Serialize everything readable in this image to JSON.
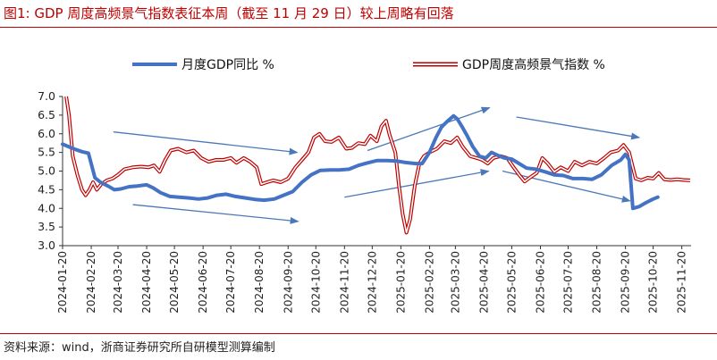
{
  "title": "图1:   GDP 周度高频景气指数表征本周（截至 11 月 29 日）较上周略有回落",
  "source": "资料来源：wind，浙商证券研究所自研模型测算编制",
  "colors": {
    "series1": "#4472c4",
    "series2": "#c00000",
    "arrow": "#4a78b8",
    "accent": "#c00000"
  },
  "chart_data": {
    "type": "line",
    "title": "",
    "xlabel": "",
    "ylabel": "",
    "ylim": [
      3.0,
      7.0
    ],
    "yticks": [
      "3.0",
      "3.5",
      "4.0",
      "4.5",
      "5.0",
      "5.5",
      "6.0",
      "6.5",
      "7.0"
    ],
    "xticks": [
      "2024-01-20",
      "2024-02-20",
      "2024-03-20",
      "2024-04-20",
      "2024-05-20",
      "2024-06-20",
      "2024-07-20",
      "2024-08-20",
      "2024-09-20",
      "2024-10-20",
      "2024-11-20",
      "2024-12-20",
      "2025-01-20",
      "2025-02-20",
      "2025-03-20",
      "2025-04-20",
      "2025-05-20",
      "2025-06-20",
      "2025-07-20",
      "2025-08-20",
      "2025-09-20",
      "2025-10-20",
      "2025-11-20"
    ],
    "legend_position": "top",
    "grid": false,
    "series": [
      {
        "name": "月度GDP同比 %",
        "style": "solid-thick",
        "points": [
          [
            "2024-01-20",
            5.72
          ],
          [
            "2024-01-27",
            5.65
          ],
          [
            "2024-02-03",
            5.58
          ],
          [
            "2024-02-10",
            5.52
          ],
          [
            "2024-02-17",
            5.48
          ],
          [
            "2024-02-20",
            5.2
          ],
          [
            "2024-02-24",
            4.82
          ],
          [
            "2024-03-01",
            4.7
          ],
          [
            "2024-03-09",
            4.6
          ],
          [
            "2024-03-16",
            4.5
          ],
          [
            "2024-03-23",
            4.52
          ],
          [
            "2024-04-01",
            4.58
          ],
          [
            "2024-04-10",
            4.6
          ],
          [
            "2024-04-20",
            4.63
          ],
          [
            "2024-04-27",
            4.55
          ],
          [
            "2024-05-05",
            4.42
          ],
          [
            "2024-05-15",
            4.32
          ],
          [
            "2024-05-25",
            4.3
          ],
          [
            "2024-06-05",
            4.28
          ],
          [
            "2024-06-15",
            4.25
          ],
          [
            "2024-06-25",
            4.28
          ],
          [
            "2024-07-05",
            4.35
          ],
          [
            "2024-07-15",
            4.38
          ],
          [
            "2024-07-25",
            4.32
          ],
          [
            "2024-08-05",
            4.28
          ],
          [
            "2024-08-15",
            4.24
          ],
          [
            "2024-08-25",
            4.22
          ],
          [
            "2024-09-05",
            4.25
          ],
          [
            "2024-09-15",
            4.35
          ],
          [
            "2024-09-25",
            4.45
          ],
          [
            "2024-10-05",
            4.7
          ],
          [
            "2024-10-15",
            4.9
          ],
          [
            "2024-10-25",
            5.02
          ],
          [
            "2024-11-05",
            5.03
          ],
          [
            "2024-11-15",
            5.03
          ],
          [
            "2024-11-25",
            5.05
          ],
          [
            "2024-12-05",
            5.15
          ],
          [
            "2024-12-15",
            5.22
          ],
          [
            "2024-12-25",
            5.28
          ],
          [
            "2025-01-05",
            5.28
          ],
          [
            "2025-01-15",
            5.27
          ],
          [
            "2025-01-25",
            5.23
          ],
          [
            "2025-02-05",
            5.2
          ],
          [
            "2025-02-12",
            5.2
          ],
          [
            "2025-02-20",
            5.5
          ],
          [
            "2025-02-27",
            5.9
          ],
          [
            "2025-03-05",
            6.18
          ],
          [
            "2025-03-12",
            6.35
          ],
          [
            "2025-03-18",
            6.48
          ],
          [
            "2025-03-22",
            6.4
          ],
          [
            "2025-03-27",
            6.2
          ],
          [
            "2025-04-01",
            5.98
          ],
          [
            "2025-04-08",
            5.65
          ],
          [
            "2025-04-15",
            5.4
          ],
          [
            "2025-04-22",
            5.35
          ],
          [
            "2025-04-28",
            5.5
          ],
          [
            "2025-05-05",
            5.42
          ],
          [
            "2025-05-12",
            5.35
          ],
          [
            "2025-05-20",
            5.32
          ],
          [
            "2025-05-28",
            5.2
          ],
          [
            "2025-06-05",
            5.08
          ],
          [
            "2025-06-15",
            5.05
          ],
          [
            "2025-06-25",
            4.98
          ],
          [
            "2025-07-05",
            4.9
          ],
          [
            "2025-07-15",
            4.88
          ],
          [
            "2025-07-25",
            4.8
          ],
          [
            "2025-08-05",
            4.8
          ],
          [
            "2025-08-15",
            4.78
          ],
          [
            "2025-08-25",
            4.9
          ],
          [
            "2025-09-05",
            5.15
          ],
          [
            "2025-09-15",
            5.3
          ],
          [
            "2025-09-20",
            5.45
          ],
          [
            "2025-09-24",
            5.3
          ],
          [
            "2025-09-28",
            4.0
          ],
          [
            "2025-10-05",
            4.05
          ],
          [
            "2025-10-12",
            4.15
          ],
          [
            "2025-10-20",
            4.25
          ],
          [
            "2025-10-25",
            4.3
          ]
        ]
      },
      {
        "name": "GDP周度高频景气指数 %",
        "style": "double-red",
        "points": [
          [
            "2024-01-24",
            7.0
          ],
          [
            "2024-01-27",
            6.5
          ],
          [
            "2024-01-31",
            5.4
          ],
          [
            "2024-02-05",
            4.9
          ],
          [
            "2024-02-10",
            4.5
          ],
          [
            "2024-02-14",
            4.35
          ],
          [
            "2024-02-18",
            4.5
          ],
          [
            "2024-02-22",
            4.7
          ],
          [
            "2024-02-26",
            4.5
          ],
          [
            "2024-03-02",
            4.65
          ],
          [
            "2024-03-08",
            4.75
          ],
          [
            "2024-03-14",
            4.8
          ],
          [
            "2024-03-20",
            4.9
          ],
          [
            "2024-03-27",
            5.05
          ],
          [
            "2024-04-05",
            5.1
          ],
          [
            "2024-04-14",
            5.12
          ],
          [
            "2024-04-22",
            5.1
          ],
          [
            "2024-04-28",
            5.15
          ],
          [
            "2024-05-04",
            4.98
          ],
          [
            "2024-05-10",
            5.3
          ],
          [
            "2024-05-16",
            5.55
          ],
          [
            "2024-05-24",
            5.6
          ],
          [
            "2024-06-02",
            5.5
          ],
          [
            "2024-06-10",
            5.55
          ],
          [
            "2024-06-18",
            5.35
          ],
          [
            "2024-06-26",
            5.25
          ],
          [
            "2024-07-04",
            5.3
          ],
          [
            "2024-07-12",
            5.3
          ],
          [
            "2024-07-20",
            5.35
          ],
          [
            "2024-07-26",
            5.22
          ],
          [
            "2024-08-03",
            5.35
          ],
          [
            "2024-08-10",
            5.25
          ],
          [
            "2024-08-17",
            5.1
          ],
          [
            "2024-08-22",
            4.65
          ],
          [
            "2024-08-28",
            4.7
          ],
          [
            "2024-09-04",
            4.75
          ],
          [
            "2024-09-12",
            4.7
          ],
          [
            "2024-09-20",
            4.8
          ],
          [
            "2024-09-28",
            5.1
          ],
          [
            "2024-10-05",
            5.3
          ],
          [
            "2024-10-12",
            5.5
          ],
          [
            "2024-10-18",
            5.9
          ],
          [
            "2024-10-24",
            6.0
          ],
          [
            "2024-10-30",
            5.8
          ],
          [
            "2024-11-06",
            5.78
          ],
          [
            "2024-11-14",
            5.9
          ],
          [
            "2024-11-22",
            5.6
          ],
          [
            "2024-11-28",
            5.62
          ],
          [
            "2024-12-05",
            5.75
          ],
          [
            "2024-12-12",
            5.72
          ],
          [
            "2024-12-18",
            5.95
          ],
          [
            "2024-12-25",
            5.8
          ],
          [
            "2024-12-30",
            6.2
          ],
          [
            "2025-01-04",
            6.35
          ],
          [
            "2025-01-08",
            5.95
          ],
          [
            "2025-01-14",
            5.5
          ],
          [
            "2025-01-18",
            4.6
          ],
          [
            "2025-01-22",
            3.85
          ],
          [
            "2025-01-26",
            3.35
          ],
          [
            "2025-01-30",
            3.7
          ],
          [
            "2025-02-04",
            4.6
          ],
          [
            "2025-02-09",
            5.2
          ],
          [
            "2025-02-14",
            5.4
          ],
          [
            "2025-02-20",
            5.5
          ],
          [
            "2025-02-28",
            5.6
          ],
          [
            "2025-03-08",
            5.8
          ],
          [
            "2025-03-15",
            5.75
          ],
          [
            "2025-03-22",
            5.9
          ],
          [
            "2025-03-28",
            5.65
          ],
          [
            "2025-04-05",
            5.4
          ],
          [
            "2025-04-12",
            5.35
          ],
          [
            "2025-04-18",
            5.3
          ],
          [
            "2025-04-24",
            5.2
          ],
          [
            "2025-04-30",
            5.35
          ],
          [
            "2025-05-08",
            5.4
          ],
          [
            "2025-05-15",
            5.35
          ],
          [
            "2025-05-22",
            5.1
          ],
          [
            "2025-05-28",
            4.9
          ],
          [
            "2025-06-03",
            4.72
          ],
          [
            "2025-06-10",
            4.85
          ],
          [
            "2025-06-16",
            4.95
          ],
          [
            "2025-06-22",
            5.35
          ],
          [
            "2025-06-28",
            5.2
          ],
          [
            "2025-07-05",
            4.98
          ],
          [
            "2025-07-12",
            5.1
          ],
          [
            "2025-07-20",
            5.0
          ],
          [
            "2025-07-27",
            5.25
          ],
          [
            "2025-08-04",
            5.15
          ],
          [
            "2025-08-12",
            5.25
          ],
          [
            "2025-08-20",
            5.2
          ],
          [
            "2025-08-28",
            5.35
          ],
          [
            "2025-09-04",
            5.5
          ],
          [
            "2025-09-12",
            5.55
          ],
          [
            "2025-09-18",
            5.7
          ],
          [
            "2025-09-24",
            5.5
          ],
          [
            "2025-10-01",
            4.8
          ],
          [
            "2025-10-07",
            4.75
          ],
          [
            "2025-10-14",
            4.82
          ],
          [
            "2025-10-20",
            4.8
          ],
          [
            "2025-10-26",
            4.95
          ],
          [
            "2025-11-01",
            4.78
          ],
          [
            "2025-11-08",
            4.76
          ],
          [
            "2025-11-15",
            4.78
          ],
          [
            "2025-11-22",
            4.76
          ],
          [
            "2025-11-29",
            4.75
          ]
        ]
      }
    ],
    "trend_arrows": [
      {
        "from": [
          "2024-03-15",
          6.05
        ],
        "to": [
          "2024-09-30",
          5.5
        ]
      },
      {
        "from": [
          "2024-04-05",
          4.1
        ],
        "to": [
          "2024-10-01",
          3.65
        ]
      },
      {
        "from": [
          "2024-11-20",
          4.3
        ],
        "to": [
          "2025-04-25",
          5.0
        ]
      },
      {
        "from": [
          "2024-12-15",
          5.55
        ],
        "to": [
          "2025-04-26",
          6.7
        ]
      },
      {
        "from": [
          "2025-05-10",
          5.0
        ],
        "to": [
          "2025-09-25",
          4.2
        ]
      },
      {
        "from": [
          "2025-05-25",
          6.45
        ],
        "to": [
          "2025-10-05",
          5.9
        ]
      }
    ]
  }
}
